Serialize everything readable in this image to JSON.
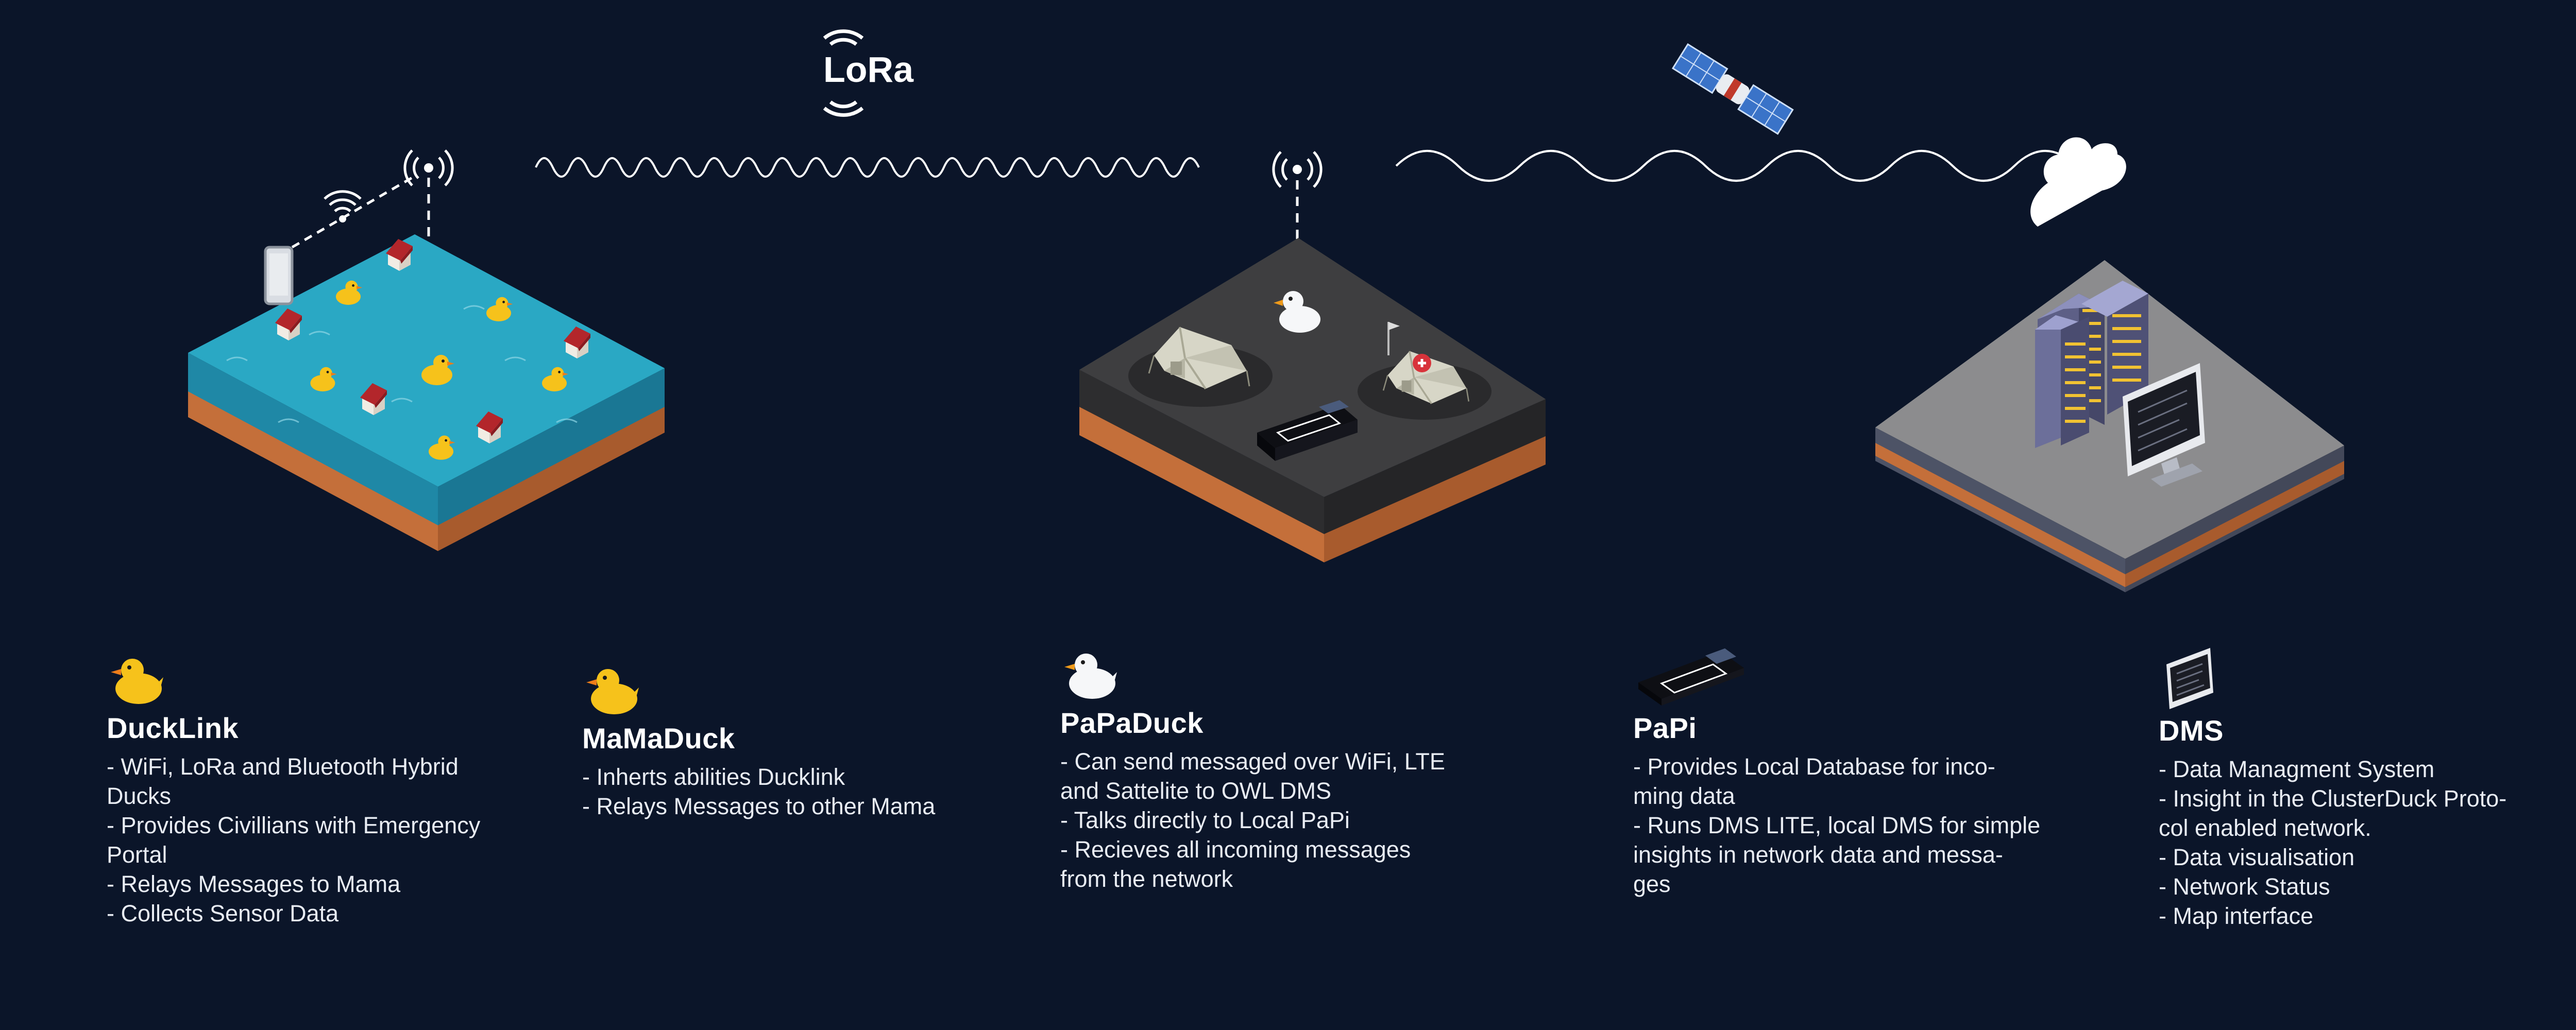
{
  "header": {
    "lora_logo_text": "LoRa"
  },
  "scene": {
    "tile_colors": {
      "water": "#2aa8c4",
      "water_side": "#1f88a6",
      "dirt": "#c46f3a",
      "dark_ground": "#3b3b3d",
      "grey_ground": "#8e8e90",
      "sky": "#0b1529"
    },
    "icons": [
      "wifi-icon",
      "antenna-icon",
      "satellite-icon",
      "cloud-icon",
      "duck-icon",
      "house-icon",
      "tent-icon",
      "server-icon",
      "monitor-icon",
      "device-icon"
    ]
  },
  "components": [
    {
      "title": "DuckLink",
      "icon": "yellow-duck-icon",
      "bullets": [
        "- WiFi, LoRa and Bluetooth Hybrid",
        "Ducks",
        "- Provides Civillians with Emergency",
        "Portal",
        "- Relays Messages to Mama",
        "- Collects Sensor Data"
      ]
    },
    {
      "title": "MaMaDuck",
      "icon": "yellow-duck-icon",
      "bullets": [
        "- Inherts abilities Ducklink",
        "- Relays Messages to other Mama"
      ]
    },
    {
      "title": "PaPaDuck",
      "icon": "white-duck-icon",
      "bullets": [
        "- Can send messaged over WiFi, LTE",
        "and Sattelite to OWL DMS",
        "- Talks directly to Local PaPi",
        "- Recieves all incoming messages",
        "from the network"
      ]
    },
    {
      "title": "PaPi",
      "icon": "device-icon",
      "bullets": [
        "- Provides Local Database for inco-",
        "ming data",
        "- Runs DMS LITE, local DMS for simple",
        "insights in network data and messa-",
        "ges"
      ]
    },
    {
      "title": "DMS",
      "icon": "monitor-icon",
      "bullets": [
        "- Data Managment System",
        "- Insight in the ClusterDuck Proto-",
        "col enabled network.",
        "- Data visualisation",
        "- Network Status",
        "- Map interface"
      ]
    }
  ]
}
